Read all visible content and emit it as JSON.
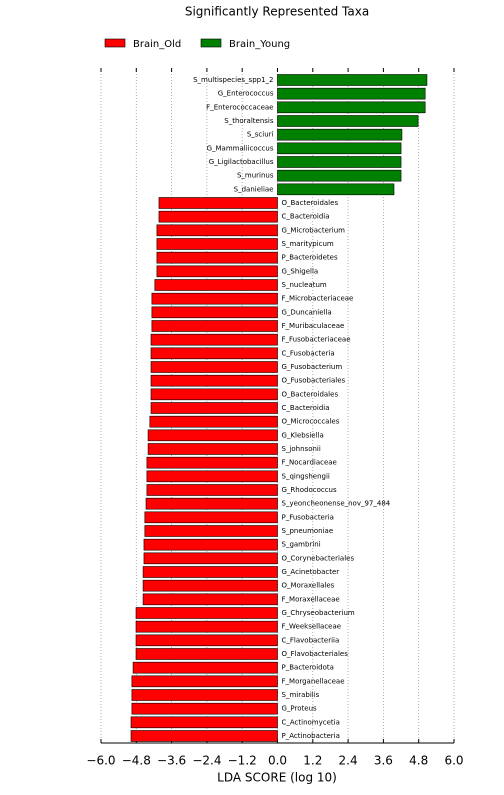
{
  "chart_data": {
    "type": "barh-diverging",
    "title": "Significantly Represented Taxa",
    "xlabel": "LDA SCORE (log 10)",
    "categories": [
      "S_multispecies_spp1_2",
      "G_Enterococcus",
      "F_Enterococcaceae",
      "S_thoraltensis",
      "S_sciuri",
      "G_Mammaliicoccus",
      "G_Ligilactobacillus",
      "S_murinus",
      "S_danieliae",
      "O_Bacteroidales",
      "C_Bacteroidia",
      "G_Microbacterium",
      "S_maritypicum",
      "P_Bacteroidetes",
      "G_Shigella",
      "S_nucleatum",
      "F_Microbacteriaceae",
      "G_Duncaniella",
      "F_Muribaculaceae",
      "F_Fusobacteriaceae",
      "C_Fusobacteria",
      "G_Fusobacterium",
      "O_Fusobacteriales",
      "O_Bacteroidales",
      "C_Bacteroidia",
      "O_Micrococcales",
      "G_Klebsiella",
      "S_johnsonii",
      "F_Nocardiaceae",
      "S_qingshengii",
      "G_Rhodococcus",
      "S_yeoncheonense_nov_97_484",
      "P_Fusobacteria",
      "S_pneumoniae",
      "S_gambrini",
      "O_Corynebacteriales",
      "G_Acinetobacter",
      "O_Moraxellales",
      "F_Moraxellaceae",
      "G_Chryseobacterium",
      "F_Weeksellaceae",
      "C_Flavobacteriia",
      "O_Flavobacteriales",
      "P_Bacteroidota",
      "F_Morganellaceae",
      "S_mirabilis",
      "G_Proteus",
      "C_Actinomycetia",
      "P_Actinobacteria"
    ],
    "series": [
      {
        "name": "Brain_Old",
        "color": "#ff0000",
        "values": [
          null,
          null,
          null,
          null,
          null,
          null,
          null,
          null,
          null,
          -4.03,
          -4.03,
          -4.1,
          -4.1,
          -4.1,
          -4.1,
          -4.17,
          -4.27,
          -4.27,
          -4.27,
          -4.3,
          -4.3,
          -4.3,
          -4.3,
          -4.3,
          -4.3,
          -4.34,
          -4.4,
          -4.4,
          -4.44,
          -4.44,
          -4.44,
          -4.47,
          -4.51,
          -4.51,
          -4.54,
          -4.54,
          -4.57,
          -4.57,
          -4.57,
          -4.81,
          -4.81,
          -4.81,
          -4.81,
          -4.91,
          -4.95,
          -4.95,
          -4.95,
          -4.98,
          -4.98
        ]
      },
      {
        "name": "Brain_Young",
        "color": "#008000",
        "values": [
          5.08,
          5.02,
          5.02,
          4.78,
          4.23,
          4.2,
          4.2,
          4.2,
          3.96,
          null,
          null,
          null,
          null,
          null,
          null,
          null,
          null,
          null,
          null,
          null,
          null,
          null,
          null,
          null,
          null,
          null,
          null,
          null,
          null,
          null,
          null,
          null,
          null,
          null,
          null,
          null,
          null,
          null,
          null,
          null,
          null,
          null,
          null,
          null,
          null,
          null,
          null,
          null,
          null
        ]
      }
    ],
    "xlim": [
      -6.0,
      6.0
    ],
    "xticks": [
      {
        "value": -6.0,
        "label": "−6.0"
      },
      {
        "value": -4.8,
        "label": "−4.8"
      },
      {
        "value": -3.6,
        "label": "−3.6"
      },
      {
        "value": -2.4,
        "label": "−2.4"
      },
      {
        "value": -1.2,
        "label": "−1.2"
      },
      {
        "value": 0.0,
        "label": "0.0"
      },
      {
        "value": 1.2,
        "label": "1.2"
      },
      {
        "value": 2.4,
        "label": "2.4"
      },
      {
        "value": 3.6,
        "label": "3.6"
      },
      {
        "value": 4.8,
        "label": "4.8"
      },
      {
        "value": 6.0,
        "label": "6.0"
      }
    ],
    "grid": true
  }
}
